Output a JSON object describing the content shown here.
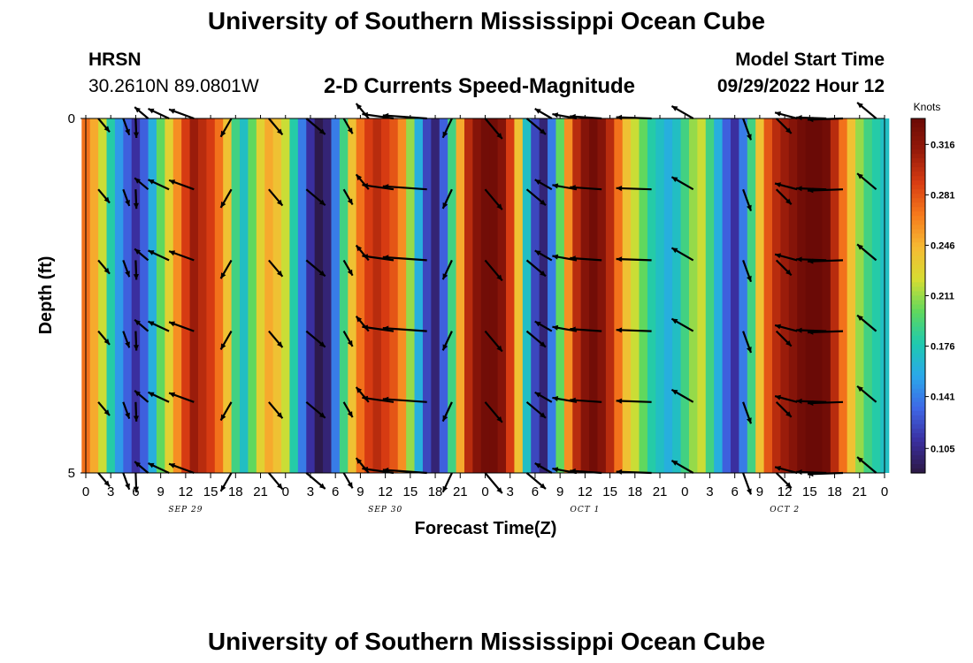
{
  "header": {
    "title": "University of Southern Mississippi Ocean Cube",
    "station": "HRSN",
    "coordinates": "30.2610N  89.0801W",
    "model_start_label": "Model Start Time",
    "model_start_value": "09/29/2022 Hour 12"
  },
  "footer": {
    "title": "University of Southern Mississippi Ocean Cube"
  },
  "chart_data": {
    "type": "heatmap",
    "title": "2-D Currents Speed-Magnitude",
    "xlabel": "Forecast Time(Z)",
    "ylabel": "Depth (ft)",
    "colorbar_label": "Knots",
    "colorbar_ticks": [
      0.105,
      0.141,
      0.176,
      0.211,
      0.246,
      0.281,
      0.316
    ],
    "colorbar_range": [
      0.088,
      0.334
    ],
    "colormap": [
      "#2c1844",
      "#3a2fa0",
      "#3f67e6",
      "#2aa8ea",
      "#1ec9b0",
      "#5fd85e",
      "#d6dd32",
      "#f6ba33",
      "#f67a1c",
      "#d83c12",
      "#951a0a",
      "#6a0a06"
    ],
    "y_range": [
      0,
      5
    ],
    "y_ticks": [
      0,
      5
    ],
    "x_range": [
      0,
      96
    ],
    "x_tick_labels": [
      "0",
      "3",
      "6",
      "9",
      "12",
      "15",
      "18",
      "21",
      "0",
      "3",
      "6",
      "9",
      "12",
      "15",
      "18",
      "21",
      "0",
      "3",
      "6",
      "9",
      "12",
      "15",
      "18",
      "21",
      "0",
      "3",
      "6",
      "9",
      "12",
      "15",
      "18",
      "21",
      "0"
    ],
    "date_labels": [
      {
        "label": "SEP 29",
        "x": 12
      },
      {
        "label": "SEP 30",
        "x": 36
      },
      {
        "label": "OCT 1",
        "x": 60
      },
      {
        "label": "OCT 2",
        "x": 84
      }
    ],
    "speed_by_hour": [
      0.27,
      0.25,
      0.22,
      0.18,
      0.15,
      0.13,
      0.11,
      0.13,
      0.16,
      0.2,
      0.23,
      0.26,
      0.29,
      0.31,
      0.3,
      0.29,
      0.27,
      0.24,
      0.19,
      0.17,
      0.2,
      0.23,
      0.25,
      0.24,
      0.22,
      0.18,
      0.14,
      0.11,
      0.09,
      0.1,
      0.14,
      0.19,
      0.24,
      0.27,
      0.29,
      0.3,
      0.29,
      0.28,
      0.26,
      0.21,
      0.16,
      0.12,
      0.1,
      0.13,
      0.19,
      0.25,
      0.3,
      0.32,
      0.33,
      0.33,
      0.32,
      0.29,
      0.24,
      0.17,
      0.12,
      0.1,
      0.14,
      0.2,
      0.26,
      0.3,
      0.32,
      0.33,
      0.32,
      0.3,
      0.27,
      0.24,
      0.22,
      0.2,
      0.18,
      0.17,
      0.16,
      0.17,
      0.19,
      0.21,
      0.22,
      0.19,
      0.16,
      0.13,
      0.11,
      0.14,
      0.19,
      0.24,
      0.28,
      0.3,
      0.31,
      0.32,
      0.33,
      0.34,
      0.34,
      0.33,
      0.3,
      0.27,
      0.24,
      0.21,
      0.19,
      0.18,
      0.17
    ],
    "vector_depths": [
      0,
      1,
      2,
      3,
      4,
      5
    ],
    "vectors": [
      {
        "x": 1.5,
        "angle": 50,
        "len": 20
      },
      {
        "x": 4.5,
        "angle": 70,
        "len": 20
      },
      {
        "x": 6,
        "angle": 88,
        "len": 22
      },
      {
        "x": 7.5,
        "angle": -140,
        "len": 20
      },
      {
        "x": 10,
        "angle": -155,
        "len": 26
      },
      {
        "x": 13,
        "angle": -160,
        "len": 30
      },
      {
        "x": 17.5,
        "angle": 120,
        "len": 24
      },
      {
        "x": 22,
        "angle": 50,
        "len": 24
      },
      {
        "x": 26.5,
        "angle": 40,
        "len": 28
      },
      {
        "x": 31,
        "angle": 60,
        "len": 20
      },
      {
        "x": 34,
        "angle": -130,
        "len": 22
      },
      {
        "x": 37,
        "angle": -172,
        "len": 36
      },
      {
        "x": 41,
        "angle": -176,
        "len": 50
      },
      {
        "x": 44,
        "angle": 115,
        "len": 24
      },
      {
        "x": 48,
        "angle": 50,
        "len": 30
      },
      {
        "x": 53,
        "angle": 40,
        "len": 28
      },
      {
        "x": 56,
        "angle": -150,
        "len": 22
      },
      {
        "x": 59,
        "angle": -170,
        "len": 28
      },
      {
        "x": 62,
        "angle": -176,
        "len": 36
      },
      {
        "x": 68,
        "angle": -178,
        "len": 40
      },
      {
        "x": 73,
        "angle": -150,
        "len": 28
      },
      {
        "x": 79,
        "angle": 70,
        "len": 26
      },
      {
        "x": 83,
        "angle": 45,
        "len": 24
      },
      {
        "x": 85.5,
        "angle": -165,
        "len": 26
      },
      {
        "x": 89,
        "angle": -178,
        "len": 34
      },
      {
        "x": 91,
        "angle": 178,
        "len": 40
      },
      {
        "x": 95,
        "angle": -140,
        "len": 28
      }
    ]
  }
}
